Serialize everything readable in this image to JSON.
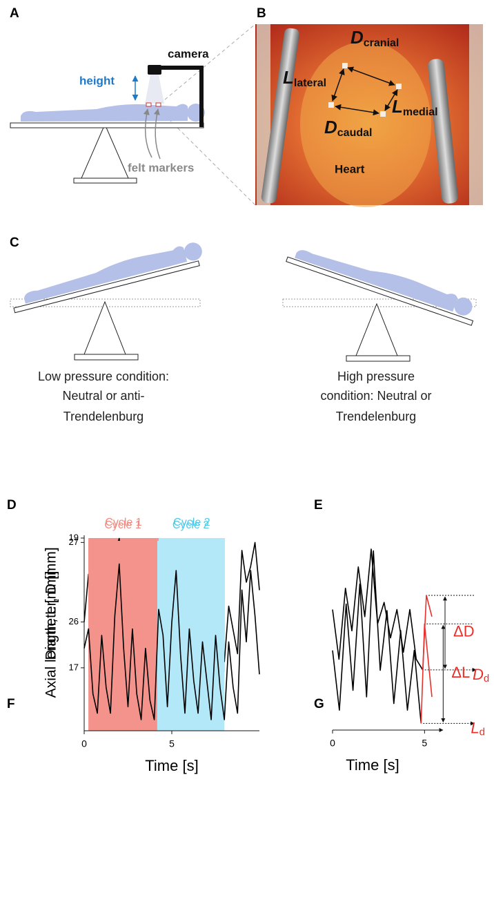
{
  "panel_labels": [
    "A",
    "B",
    "C",
    "D",
    "E",
    "F",
    "G"
  ],
  "panel_a": {
    "camera": "camera",
    "height": "height",
    "markers": "felt markers"
  },
  "panel_b": {
    "labels": [
      {
        "main": "D",
        "sub": "cranial"
      },
      {
        "main": "L",
        "sub": "lateral"
      },
      {
        "main": "L",
        "sub": "medial"
      },
      {
        "main": "D",
        "sub": "caudal"
      }
    ],
    "organ": "Heart"
  },
  "panel_c": {
    "left_caption": [
      "Low pressure condition:",
      "Neutral or anti-",
      "Trendelenburg"
    ],
    "right_caption": [
      "High pressure",
      "condition: Neutral or",
      "Trendelenburg"
    ]
  },
  "chart_data": [
    {
      "type": "line",
      "ylabel": "Diameter, D [mm]",
      "xlim": [
        0,
        10
      ],
      "ylim": [
        25.37,
        27.09
      ],
      "yticks": [
        26,
        27
      ],
      "x": [
        0,
        0.25,
        0.5,
        0.75,
        1,
        1.25,
        1.5,
        1.75,
        2,
        2.25,
        2.5,
        2.75,
        3,
        3.25,
        3.5,
        3.75,
        4,
        4.25,
        4.5,
        4.75,
        5,
        5.25,
        5.5,
        5.75,
        6,
        6.25,
        6.5,
        6.75,
        7,
        7.25,
        7.5,
        7.75,
        8,
        8.25,
        8.5,
        8.75,
        9,
        9.25,
        9.5,
        9.75,
        10
      ],
      "series": [
        {
          "color": "#000000",
          "values": [
            26.0,
            26.6,
            26.3,
            25.7,
            26.7,
            26.4,
            25.9,
            26.9,
            27.05,
            26.5,
            26.0,
            26.7,
            26.3,
            25.7,
            26.5,
            26.1,
            25.5,
            26.1,
            26.7,
            26.2,
            26.0,
            26.9,
            26.7,
            26.0,
            26.5,
            26.2,
            25.7,
            26.4,
            26.1,
            25.5,
            26.2,
            25.9,
            25.5,
            26.2,
            25.9,
            25.6,
            26.9,
            26.5,
            26.7,
            27.0,
            26.4
          ]
        }
      ],
      "regions": [
        {
          "name": "Cycle 1",
          "color": "#f4928c",
          "label_color": "#f08a80",
          "x": [
            0.24,
            4.25
          ]
        },
        {
          "name": "Cycle 2",
          "color": "#b3e8f8",
          "label_color": "#4cc8e8",
          "x": [
            4.25,
            8.03
          ]
        }
      ]
    },
    {
      "type": "line",
      "xlim": [
        0,
        6
      ],
      "ylim": [
        25.4,
        27.2
      ],
      "x": [
        0,
        0.35,
        0.7,
        1.05,
        1.4,
        1.75,
        2.1,
        2.45,
        2.8,
        3.15,
        3.5,
        3.85,
        4.2,
        4.55,
        4.9
      ],
      "series": [
        {
          "color": "#000000",
          "values": [
            26.3,
            25.6,
            26.6,
            26.0,
            26.9,
            26.2,
            27.15,
            26.1,
            26.4,
            25.9,
            26.3,
            25.7,
            26.3,
            25.6,
            25.45
          ]
        },
        {
          "color": "#e8302a",
          "x": [
            4.9,
            5.1,
            5.4
          ],
          "values": [
            25.45,
            26.5,
            26.2
          ]
        }
      ],
      "delta_label": "ΔD",
      "base_label": {
        "main": "D",
        "sub": "d"
      }
    },
    {
      "type": "line",
      "ylabel": "Axial length, L [mm]",
      "xlabel": "Time [s]",
      "xlim": [
        0,
        10
      ],
      "ylim": [
        16.03,
        19
      ],
      "yticks": [
        17,
        19
      ],
      "xticks": [
        0,
        5
      ],
      "x": [
        0,
        0.25,
        0.5,
        0.75,
        1,
        1.25,
        1.5,
        1.75,
        2,
        2.25,
        2.5,
        2.75,
        3,
        3.25,
        3.5,
        3.75,
        4,
        4.25,
        4.5,
        4.75,
        5,
        5.25,
        5.5,
        5.75,
        6,
        6.25,
        6.5,
        6.75,
        7,
        7.25,
        7.5,
        7.75,
        8,
        8.25,
        8.5,
        8.75,
        9,
        9.25,
        9.5,
        9.75,
        10
      ],
      "series": [
        {
          "color": "#000000",
          "values": [
            17.3,
            17.6,
            16.6,
            16.3,
            17.5,
            16.7,
            16.3,
            17.8,
            18.6,
            17.3,
            16.4,
            17.6,
            16.6,
            16.2,
            17.3,
            16.5,
            16.2,
            17.9,
            17.5,
            16.4,
            17.7,
            18.5,
            17.2,
            16.3,
            17.6,
            16.8,
            16.3,
            17.4,
            16.8,
            16.2,
            17.5,
            16.7,
            16.2,
            17.4,
            16.7,
            16.3,
            18.2,
            17.4,
            18.5,
            17.8,
            16.9
          ]
        }
      ],
      "regions": [
        {
          "name": "Cycle 1",
          "color": "#f4928c",
          "label_color": "#f08a80",
          "x": [
            0.24,
            4.17
          ]
        },
        {
          "name": "Cycle 2",
          "color": "#b3e8f8",
          "label_color": "#4cc8e8",
          "x": [
            4.17,
            8.0
          ]
        }
      ]
    },
    {
      "type": "line",
      "xlabel": "Time [s]",
      "xlim": [
        0,
        6
      ],
      "ylim": [
        16.0,
        18.8
      ],
      "xticks": [
        0,
        5
      ],
      "x": [
        0,
        0.37,
        0.74,
        1.11,
        1.48,
        1.85,
        2.22,
        2.59,
        2.96,
        3.33,
        3.7,
        4.07,
        4.44,
        4.81
      ],
      "series": [
        {
          "color": "#000000",
          "values": [
            17.2,
            16.3,
            17.9,
            16.6,
            18.2,
            16.5,
            18.7,
            16.9,
            17.8,
            16.4,
            17.5,
            16.3,
            17.2,
            16.1
          ]
        },
        {
          "color": "#e8302a",
          "x": [
            4.81,
            5.0,
            5.4
          ],
          "values": [
            16.1,
            17.6,
            16.5
          ]
        }
      ],
      "delta_label": "ΔL",
      "base_label": {
        "main": "L",
        "sub": "d"
      }
    }
  ]
}
